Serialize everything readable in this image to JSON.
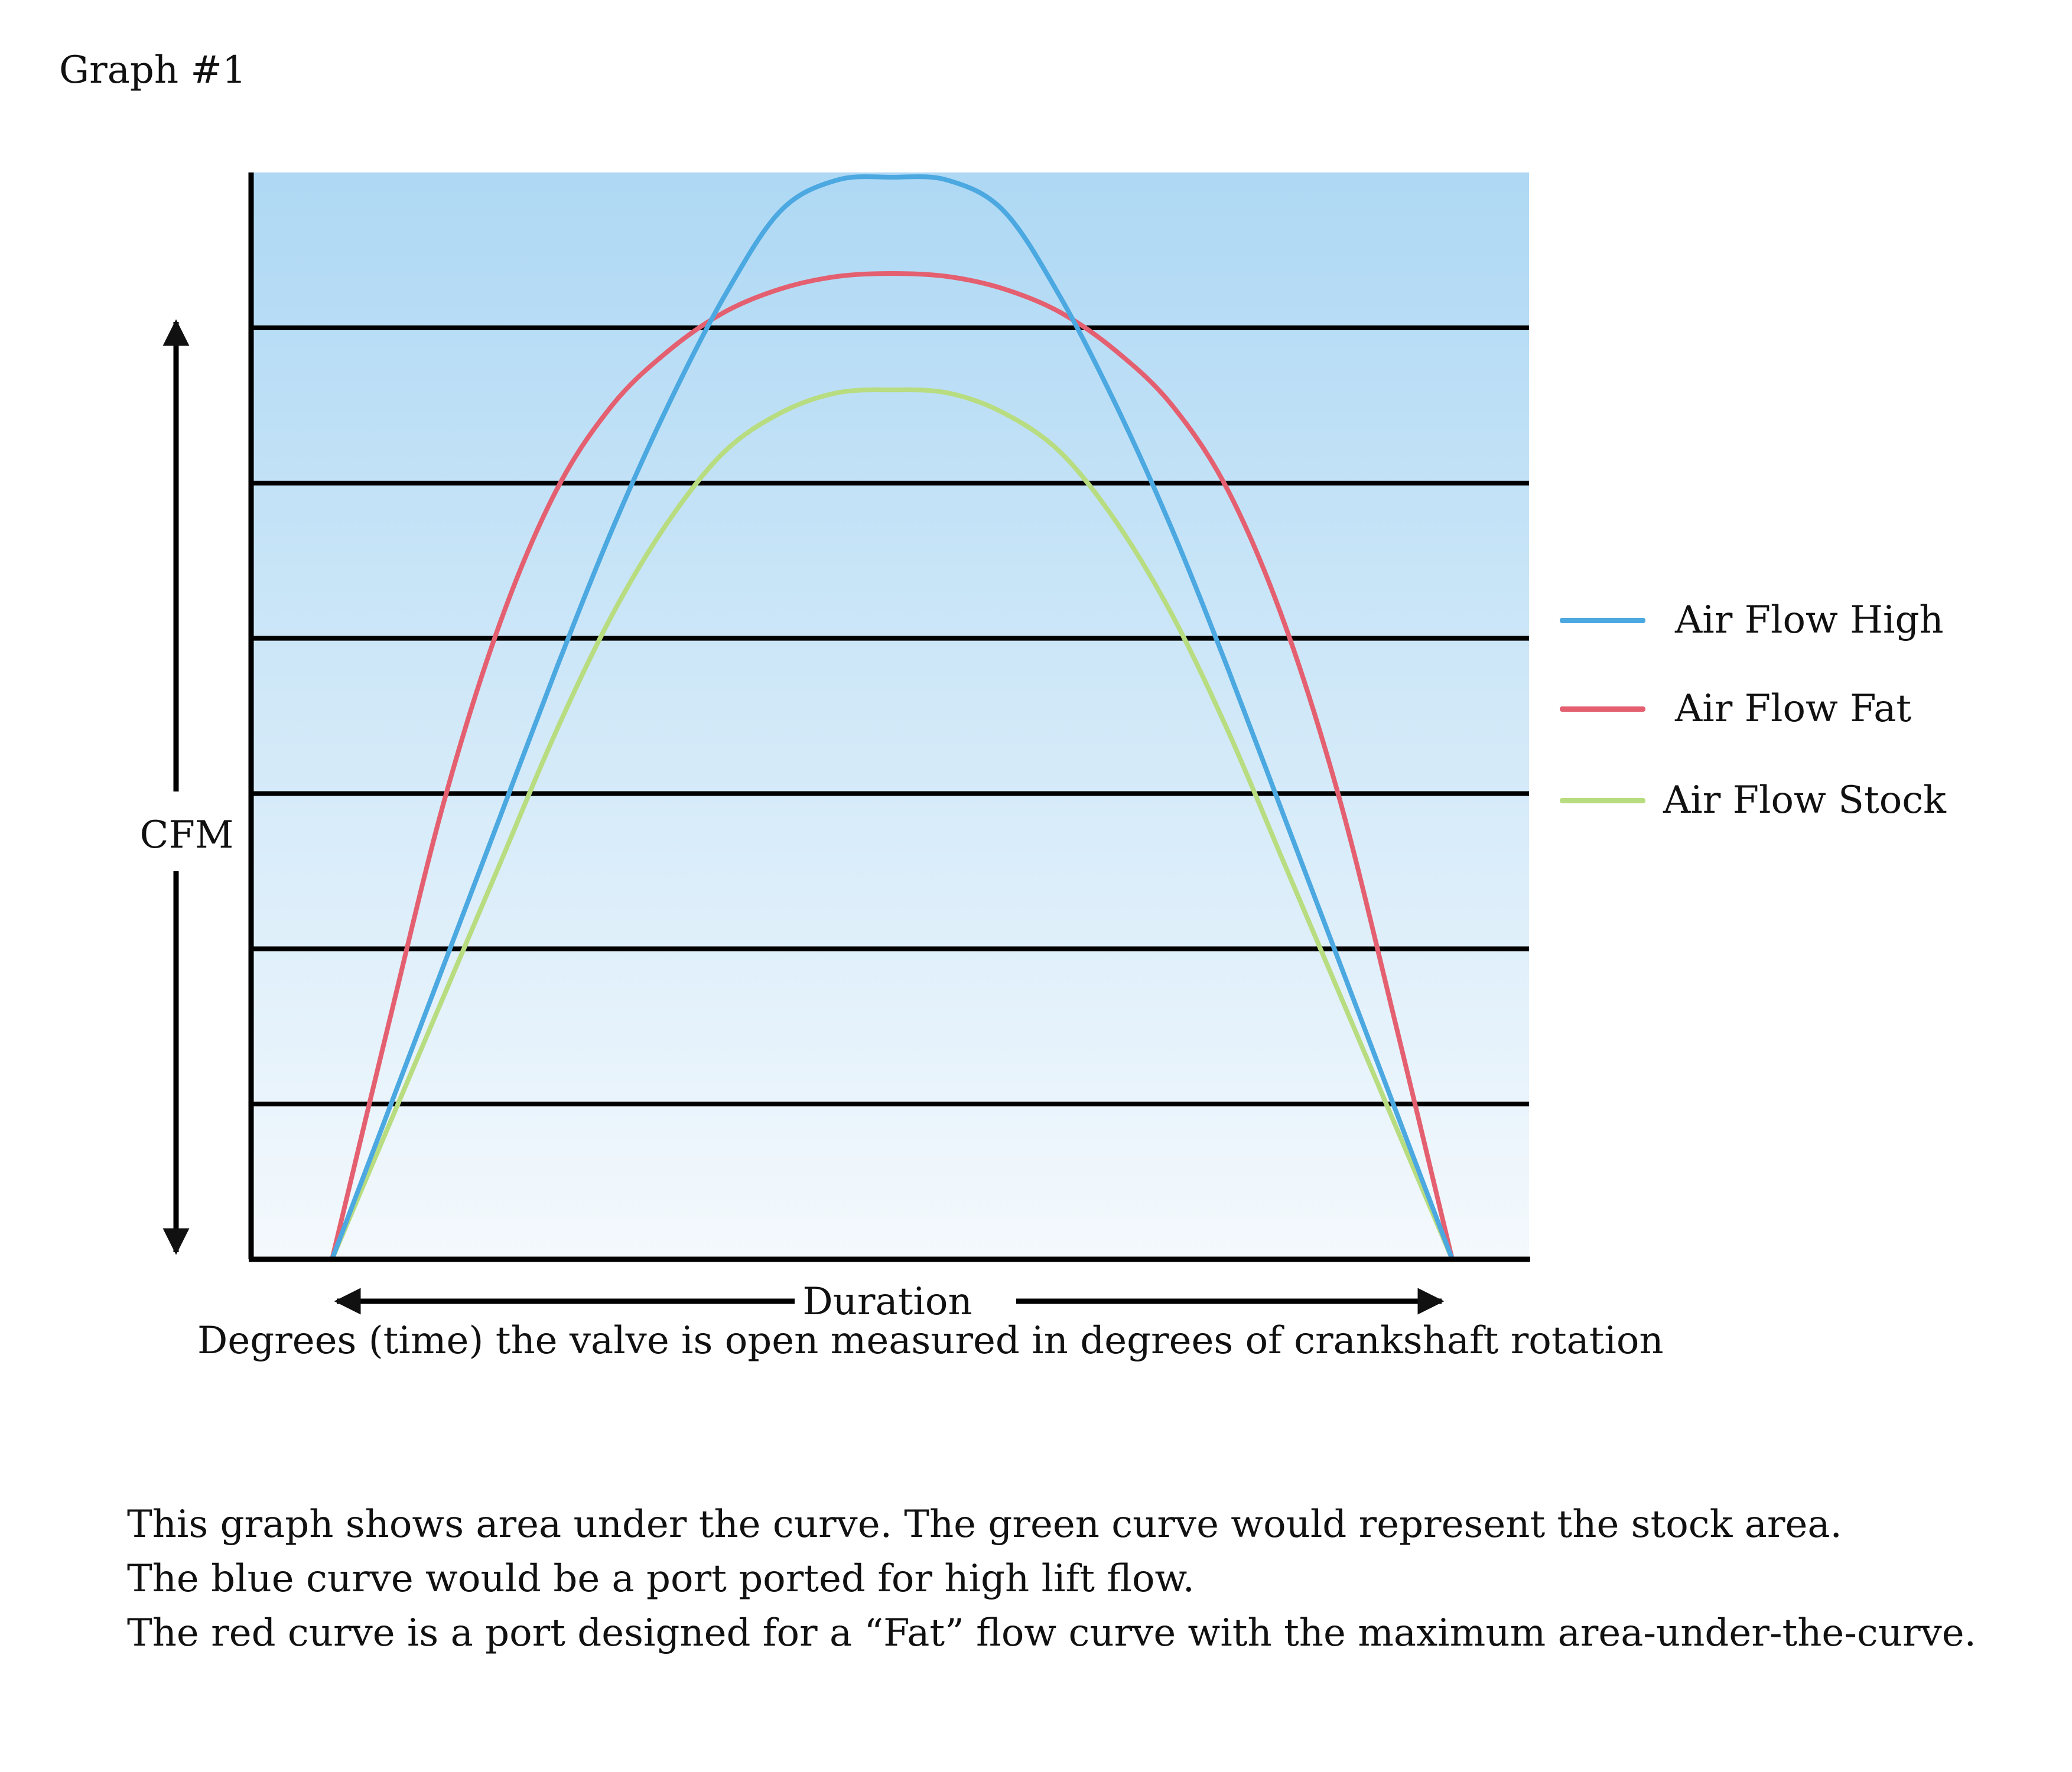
{
  "heading": "Graph #1",
  "chart_data": {
    "type": "line",
    "ylabel": "CFM",
    "xlabel": "Duration",
    "subtitle": "Degrees (time) the valve is open measured in degrees of crankshaft rotation",
    "xlim": [
      0,
      100
    ],
    "ylim": [
      0,
      7
    ],
    "grid": true,
    "legend_position": "right",
    "series": [
      {
        "name": "Air Flow High",
        "color": "#4ba8e0",
        "x": [
          0,
          5,
          10,
          15,
          20,
          25,
          30,
          35,
          40,
          45,
          50,
          55,
          60,
          65,
          70,
          75,
          80,
          85,
          90,
          95,
          100
        ],
        "y": [
          0,
          0.95,
          1.9,
          2.85,
          3.8,
          4.7,
          5.5,
          6.2,
          6.75,
          6.95,
          6.97,
          6.95,
          6.75,
          6.2,
          5.5,
          4.7,
          3.8,
          2.85,
          1.9,
          0.95,
          0
        ]
      },
      {
        "name": "Air Flow Fat",
        "color": "#e46070",
        "x": [
          0,
          5,
          10,
          15,
          20,
          25,
          30,
          35,
          40,
          45,
          50,
          55,
          60,
          65,
          70,
          75,
          80,
          85,
          90,
          95,
          100
        ],
        "y": [
          0,
          1.5,
          2.95,
          4.1,
          4.95,
          5.5,
          5.85,
          6.1,
          6.25,
          6.33,
          6.35,
          6.33,
          6.25,
          6.1,
          5.85,
          5.5,
          4.95,
          4.1,
          2.95,
          1.5,
          0
        ]
      },
      {
        "name": "Air Flow Stock",
        "color": "#b8dc80",
        "x": [
          0,
          5,
          10,
          15,
          20,
          25,
          30,
          35,
          40,
          45,
          50,
          55,
          60,
          65,
          70,
          75,
          80,
          85,
          90,
          95,
          100
        ],
        "y": [
          0,
          0.85,
          1.7,
          2.55,
          3.4,
          4.15,
          4.75,
          5.2,
          5.45,
          5.58,
          5.6,
          5.58,
          5.45,
          5.2,
          4.75,
          4.15,
          3.4,
          2.55,
          1.7,
          0.85,
          0
        ]
      }
    ]
  },
  "notes": [
    "This graph shows area under the curve. The green curve would represent the stock area.",
    "The blue curve would be a port ported for high lift flow.",
    "The red curve is a port designed for a “Fat” flow curve with the maximum area-under-the-curve."
  ]
}
